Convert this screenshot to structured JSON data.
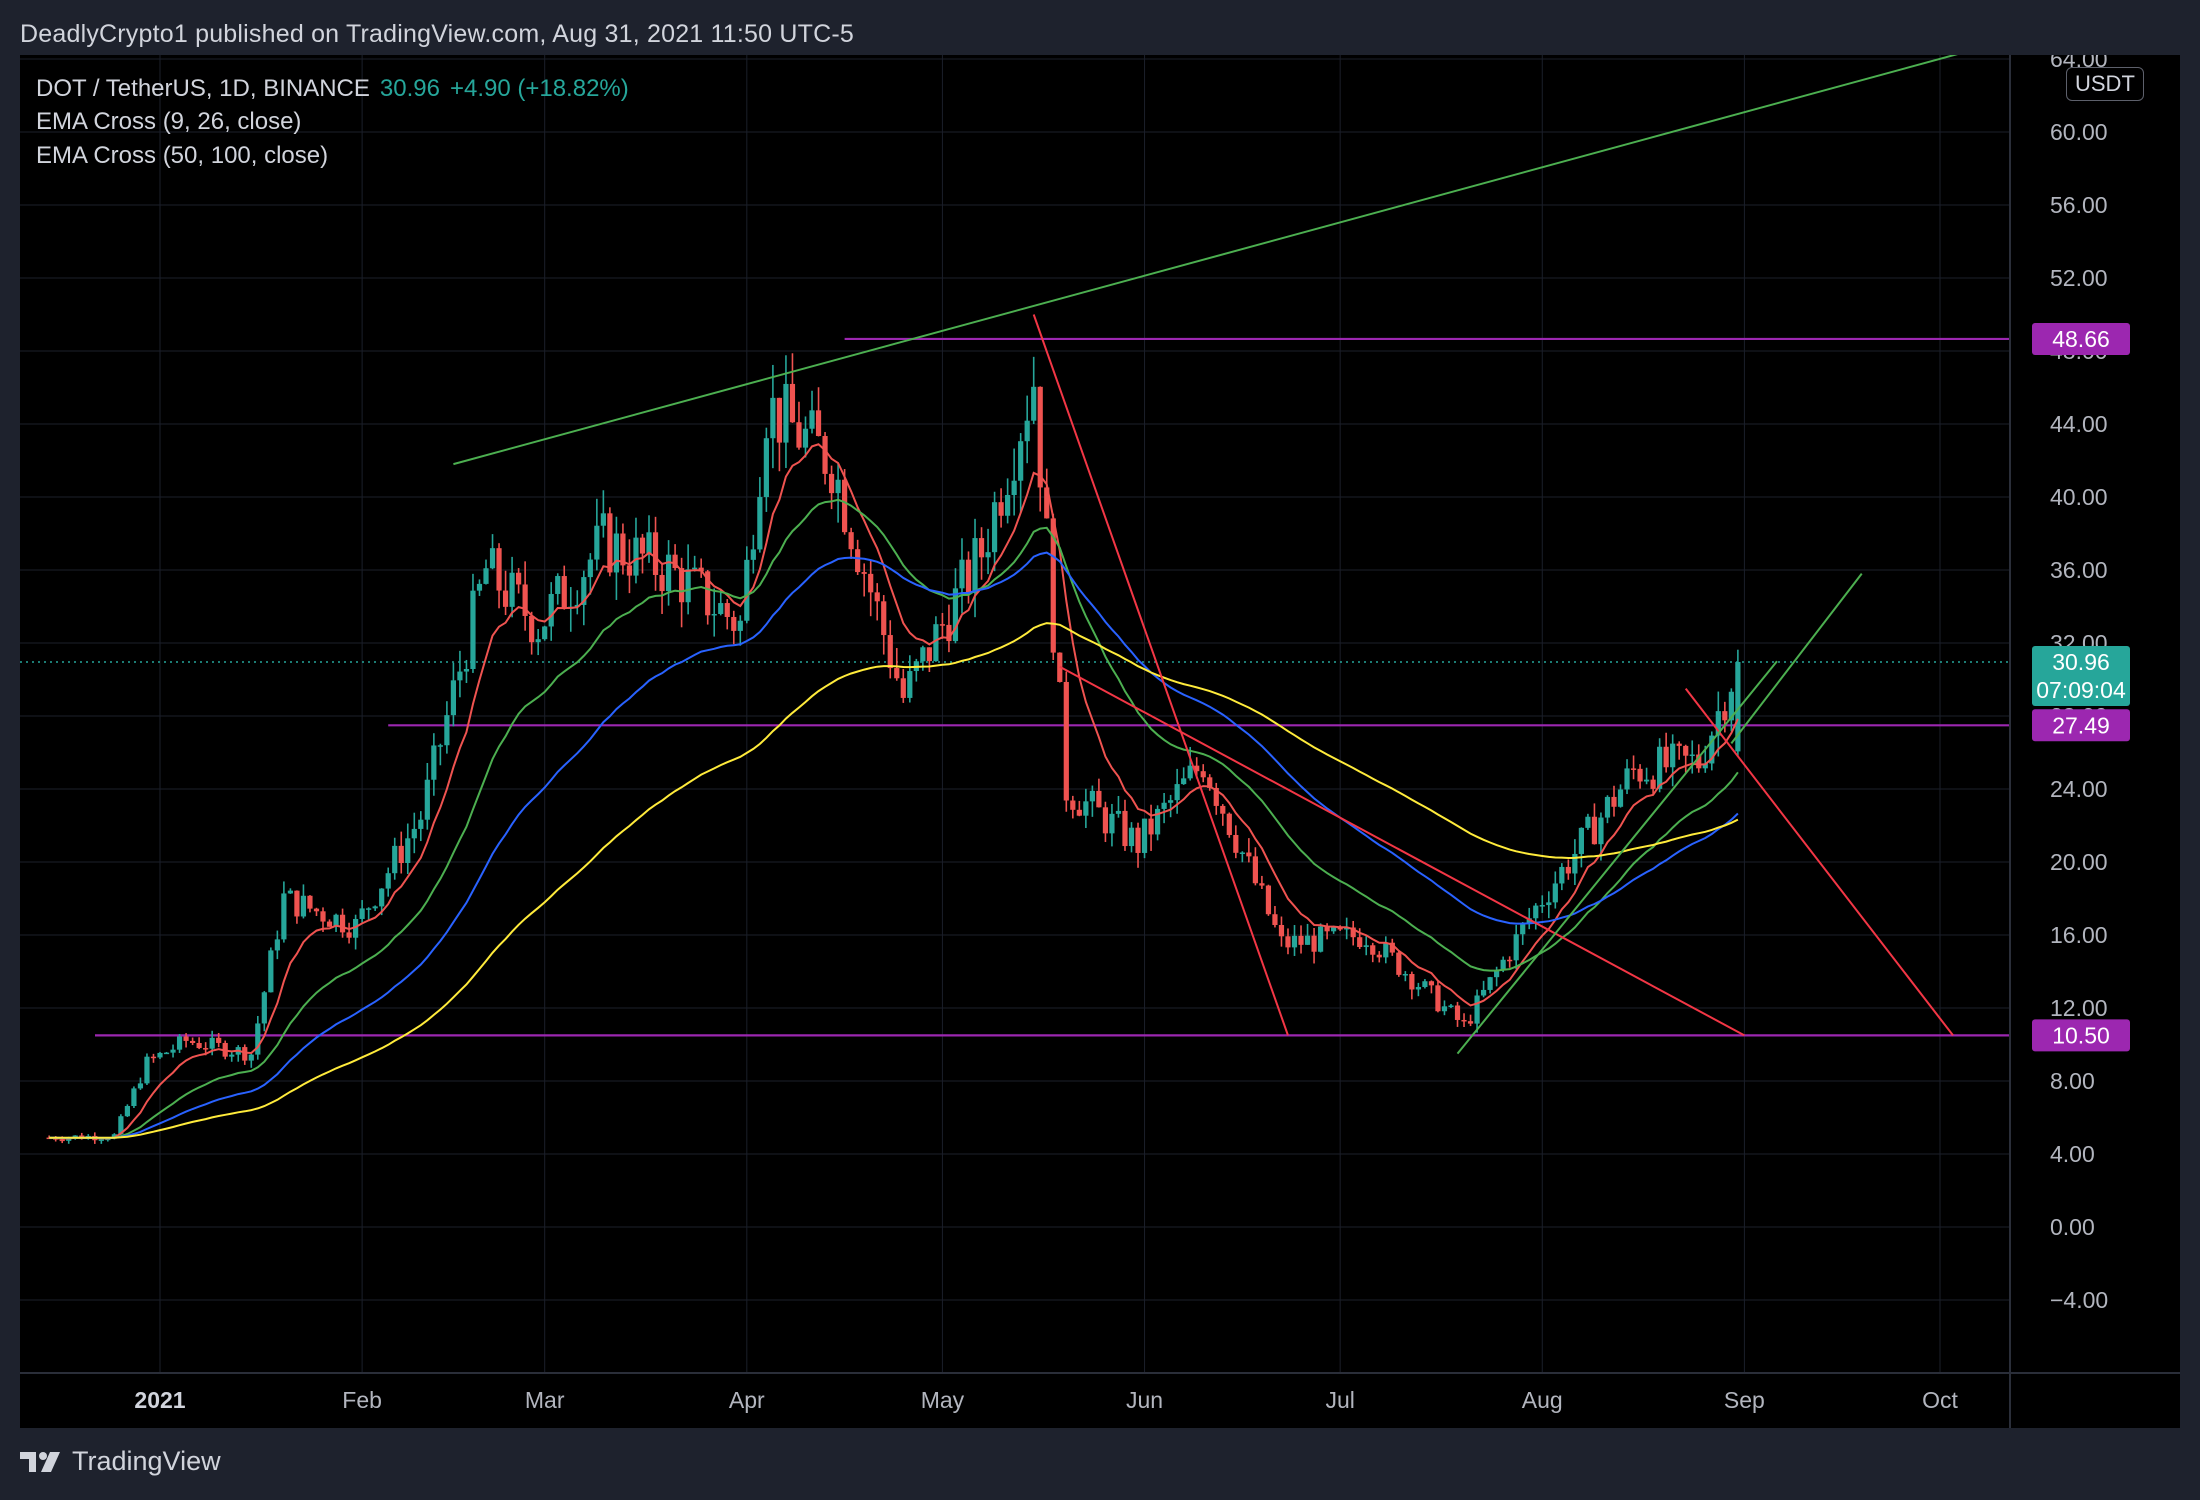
{
  "header": {
    "credit": "DeadlyCrypto1 published on TradingView.com, Aug 31, 2021 11:50 UTC-5"
  },
  "legend": {
    "symbol": "DOT / TetherUS, 1D, BINANCE",
    "last": "30.96",
    "change": "+4.90 (+18.82%)",
    "ema_fast": "EMA Cross (9, 26, close)",
    "ema_slow": "EMA Cross (50, 100, close)"
  },
  "currency": "USDT",
  "footer": {
    "brand": "TradingView"
  },
  "colors": {
    "up": "#26a69a",
    "down": "#ef5350",
    "ema9": "#ef5350",
    "ema26": "#4caf50",
    "ema50": "#2962ff",
    "ema100": "#ffeb3b",
    "level": "#9c27b0",
    "trend_up": "#4caf50",
    "trend_down": "#f23645"
  },
  "price_tags": {
    "last_price": "30.96",
    "countdown": "07:09:04",
    "level_top": "48.66",
    "level_mid": "27.49",
    "level_low": "10.50"
  },
  "chart_data": {
    "type": "candlestick",
    "y_axis_ticks": [
      "64.00",
      "60.00",
      "56.00",
      "52.00",
      "48.00",
      "44.00",
      "40.00",
      "36.00",
      "32.00",
      "28.00",
      "24.00",
      "20.00",
      "16.00",
      "12.00",
      "8.00",
      "4.00",
      "0.00",
      "−4.00"
    ],
    "x_axis_labels": [
      "2021",
      "Feb",
      "Mar",
      "Apr",
      "May",
      "Jun",
      "Jul",
      "Aug",
      "Sep",
      "Oct"
    ],
    "ylim": [
      -7,
      64
    ],
    "horizontal_levels": [
      48.66,
      27.49,
      10.5
    ],
    "last_price": 30.96,
    "series": [
      {
        "kind": "ohlc",
        "approx_closes": [
          {
            "date": "2020-12-15",
            "close": 4.9
          },
          {
            "date": "2020-12-25",
            "close": 5.0
          },
          {
            "date": "2020-12-30",
            "close": 9.0
          },
          {
            "date": "2021-01-05",
            "close": 10.2
          },
          {
            "date": "2021-01-15",
            "close": 9.5
          },
          {
            "date": "2021-01-20",
            "close": 18.0
          },
          {
            "date": "2021-01-31",
            "close": 16.5
          },
          {
            "date": "2021-02-10",
            "close": 22.5
          },
          {
            "date": "2021-02-20",
            "close": 36.0
          },
          {
            "date": "2021-02-28",
            "close": 33.0
          },
          {
            "date": "2021-03-10",
            "close": 37.5
          },
          {
            "date": "2021-03-20",
            "close": 36.0
          },
          {
            "date": "2021-03-31",
            "close": 33.0
          },
          {
            "date": "2021-04-04",
            "close": 45.0
          },
          {
            "date": "2021-04-14",
            "close": 42.0
          },
          {
            "date": "2021-04-25",
            "close": 29.0
          },
          {
            "date": "2021-05-07",
            "close": 37.0
          },
          {
            "date": "2021-05-15",
            "close": 46.5
          },
          {
            "date": "2021-05-20",
            "close": 24.0
          },
          {
            "date": "2021-05-31",
            "close": 21.0
          },
          {
            "date": "2021-06-10",
            "close": 25.5
          },
          {
            "date": "2021-06-22",
            "close": 15.5
          },
          {
            "date": "2021-07-05",
            "close": 16.0
          },
          {
            "date": "2021-07-20",
            "close": 11.0
          },
          {
            "date": "2021-07-31",
            "close": 17.5
          },
          {
            "date": "2021-08-15",
            "close": 25.0
          },
          {
            "date": "2021-08-25",
            "close": 25.5
          },
          {
            "date": "2021-08-31",
            "close": 30.96
          }
        ]
      },
      {
        "name": "EMA Cross (9, 26, close)",
        "kind": "ema"
      },
      {
        "name": "EMA Cross (50, 100, close)",
        "kind": "ema"
      }
    ],
    "grid": true,
    "legend_position": "top-left"
  }
}
